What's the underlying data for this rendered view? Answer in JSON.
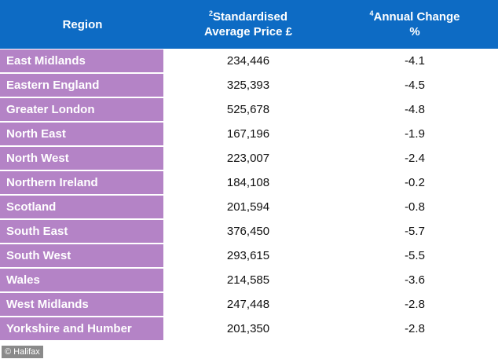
{
  "header": {
    "region": "Region",
    "price_sup": "2",
    "price_line1": "Standardised",
    "price_line2": "Average Price £",
    "change_sup": "4",
    "change_line1": "Annual Change",
    "change_line2": "%"
  },
  "rows": [
    {
      "region": "East Midlands",
      "price": "234,446",
      "change": "-4.1"
    },
    {
      "region": "Eastern England",
      "price": "325,393",
      "change": "-4.5"
    },
    {
      "region": "Greater London",
      "price": "525,678",
      "change": "-4.8"
    },
    {
      "region": "North East",
      "price": "167,196",
      "change": "-1.9"
    },
    {
      "region": "North West",
      "price": "223,007",
      "change": "-2.4"
    },
    {
      "region": "Northern Ireland",
      "price": "184,108",
      "change": "-0.2"
    },
    {
      "region": "Scotland",
      "price": "201,594",
      "change": "-0.8"
    },
    {
      "region": "South East",
      "price": "376,450",
      "change": "-5.7"
    },
    {
      "region": "South West",
      "price": "293,615",
      "change": "-5.5"
    },
    {
      "region": "Wales",
      "price": "214,585",
      "change": "-3.6"
    },
    {
      "region": "West Midlands",
      "price": "247,448",
      "change": "-2.8"
    },
    {
      "region": "Yorkshire and Humber",
      "price": "201,350",
      "change": "-2.8"
    }
  ],
  "credit": "© Halifax",
  "colors": {
    "header_bg": "#0d6bc4",
    "region_bg": "#b483c6"
  }
}
